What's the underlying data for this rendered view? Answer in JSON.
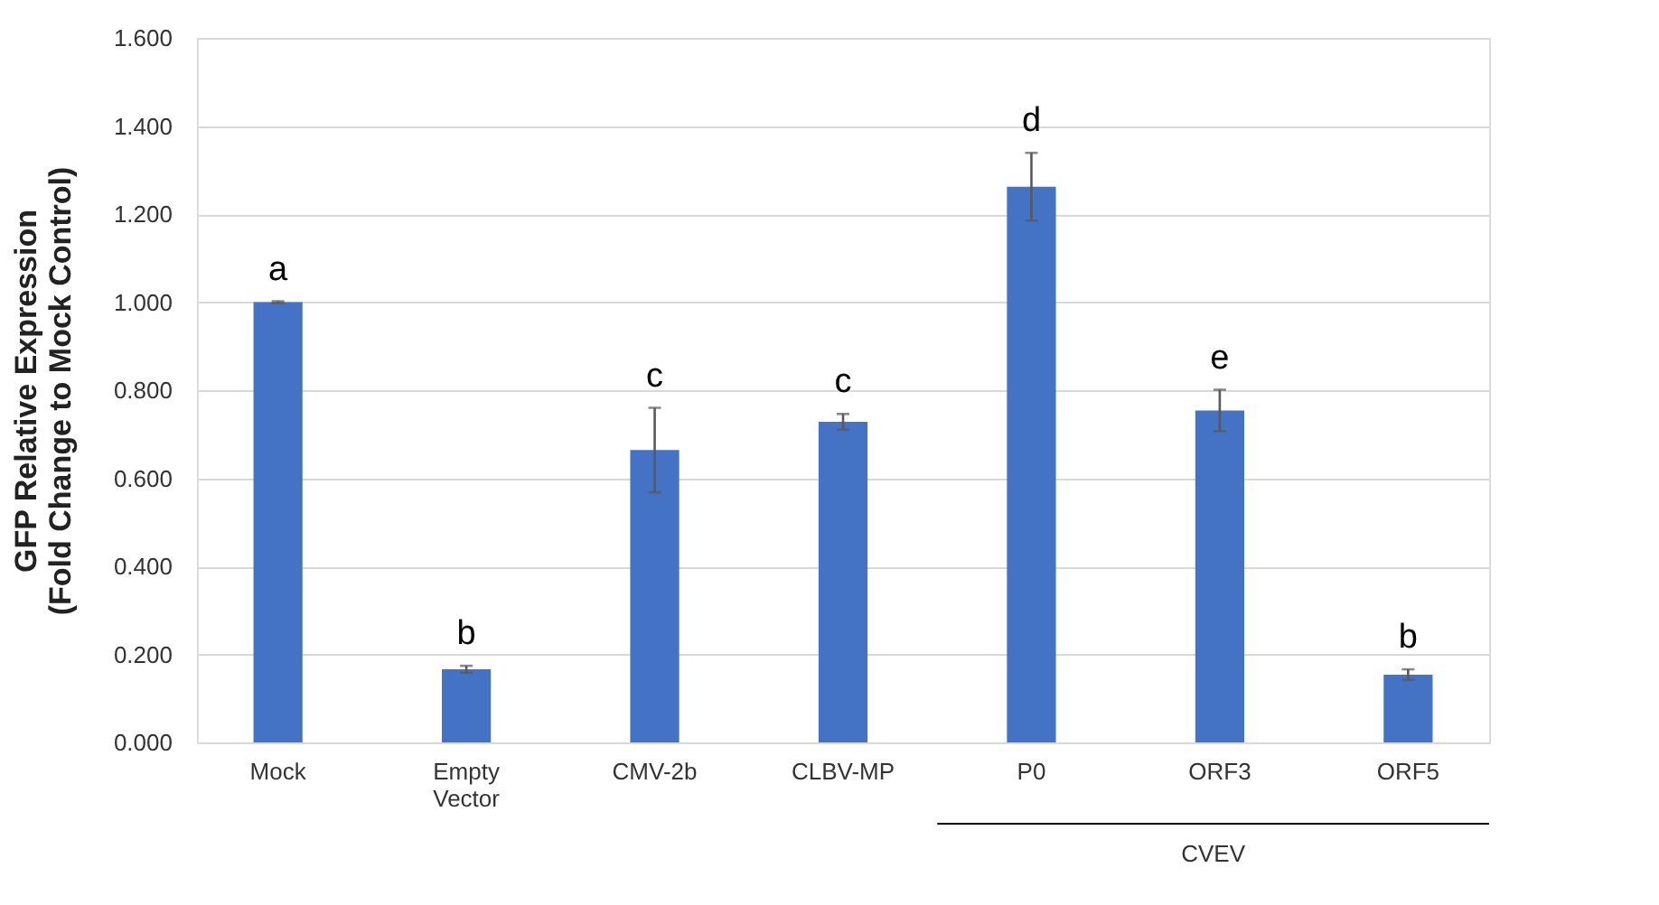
{
  "chart_data": {
    "type": "bar",
    "ylabel": "GFP Relative Expression\n(Fold Change to Mock Control)",
    "categories": [
      "Mock",
      "Empty Vector",
      "CMV-2b",
      "CLBV-MP",
      "P0",
      "ORF3",
      "ORF5"
    ],
    "values": [
      1.0,
      0.166,
      0.664,
      0.728,
      1.262,
      0.754,
      0.154
    ],
    "errors": [
      0.002,
      0.008,
      0.096,
      0.018,
      0.077,
      0.047,
      0.012
    ],
    "color": "#4472c4",
    "ylim": [
      0,
      1.6
    ],
    "yticks": [
      {
        "value": 0,
        "label": "0.000"
      },
      {
        "value": 0.2,
        "label": "0.200"
      },
      {
        "value": 0.4,
        "label": "0.400"
      },
      {
        "value": 0.6,
        "label": "0.600"
      },
      {
        "value": 0.8,
        "label": "0.800"
      },
      {
        "value": 1.0,
        "label": "1.000"
      },
      {
        "value": 1.2,
        "label": "1.200"
      },
      {
        "value": 1.4,
        "label": "1.400"
      },
      {
        "value": 1.6,
        "label": "1.600"
      }
    ],
    "grid": "y",
    "annotations": [
      "a",
      "b",
      "c",
      "c",
      "d",
      "e",
      "b",
      "CVEV"
    ]
  }
}
